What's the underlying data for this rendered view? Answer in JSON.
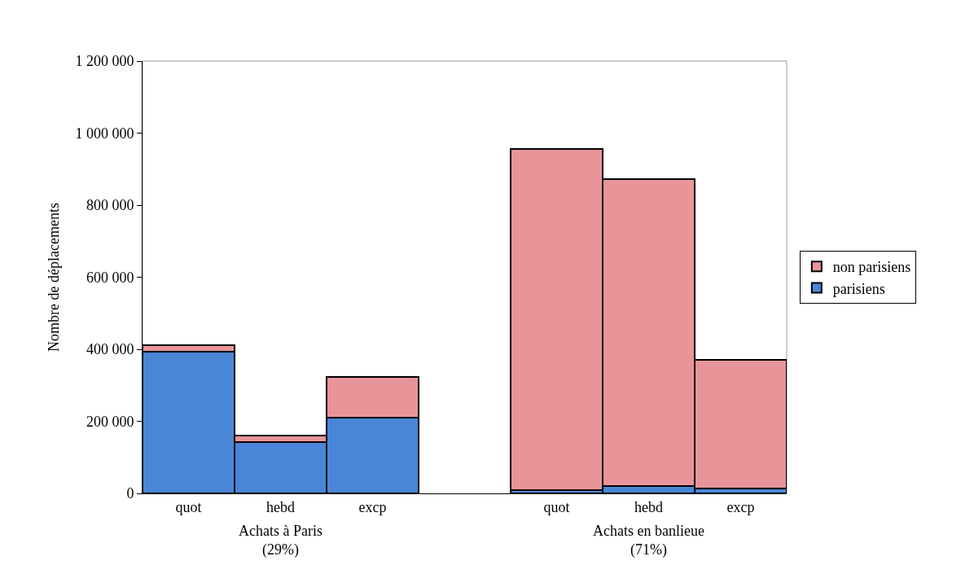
{
  "chart_data": {
    "type": "bar",
    "stacked": true,
    "ylabel": "Nombre de déplacements",
    "categories": [
      "quot",
      "hebd",
      "excp",
      null,
      "quot",
      "hebd",
      "excp"
    ],
    "series": [
      {
        "name": "parisiens",
        "color": "#4a86d8",
        "values": [
          393000,
          142000,
          211000,
          null,
          8000,
          20000,
          14000
        ]
      },
      {
        "name": "non parisiens",
        "color": "#e8959a",
        "values": [
          18000,
          18000,
          113000,
          null,
          948000,
          853000,
          357000
        ]
      }
    ],
    "ylim": [
      0,
      1200000
    ],
    "yticks": [
      0,
      {
        "value": 200000,
        "label": "200 000"
      },
      {
        "value": 400000,
        "label": "400 000"
      },
      {
        "value": 600000,
        "label": "600 000"
      },
      {
        "value": 800000,
        "label": "800 000"
      },
      {
        "value": 1000000,
        "label": "1 000 000"
      },
      {
        "value": 1200000,
        "label": "1 200 000"
      }
    ],
    "legend": "right",
    "annotations": [
      "Achats à Paris\n(29%)",
      "Achats en banlieue\n(71%)"
    ]
  }
}
